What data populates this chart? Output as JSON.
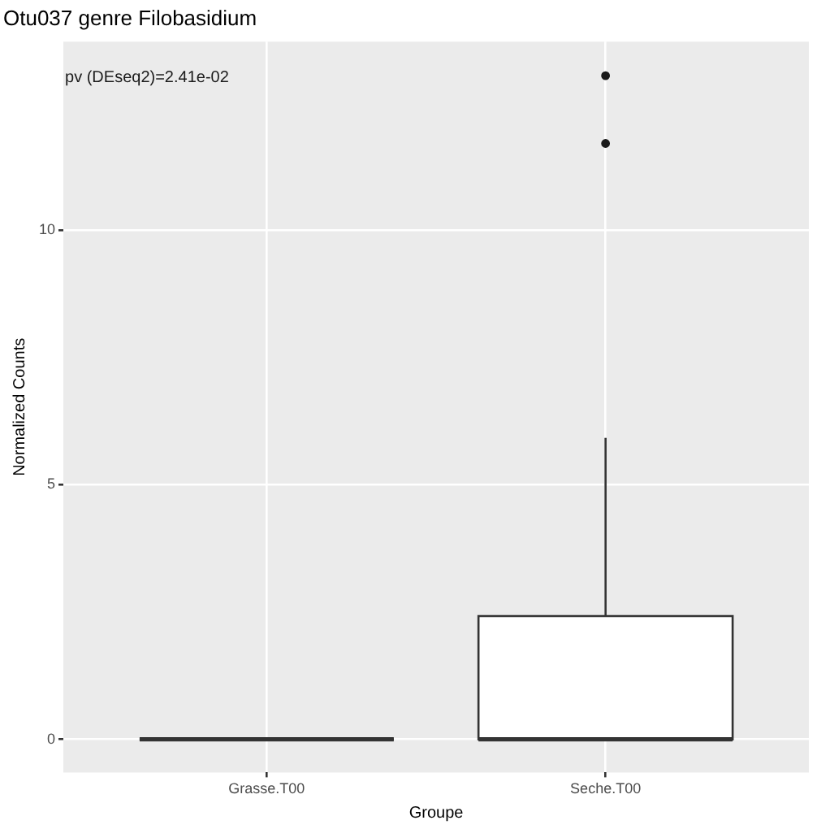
{
  "chart_data": {
    "type": "box",
    "title": "Otu037 genre Filobasidium",
    "xlabel": "Groupe",
    "ylabel": "Normalized Counts",
    "categories": [
      "Grasse.T00",
      "Seche.T00"
    ],
    "boxes": [
      {
        "low": 0,
        "q1": 0,
        "median": 0,
        "q3": 0,
        "high": 0
      },
      {
        "low": 0,
        "q1": 0,
        "median": 0,
        "q3": 2.42,
        "high": 5.92,
        "outliers": [
          11.7,
          13.03
        ]
      }
    ],
    "ylim": [
      -0.65,
      13.7
    ],
    "yticks": [
      0,
      5,
      10
    ],
    "grid": true,
    "annotations": [
      "pv (DEseq2)=2.41e-02"
    ]
  }
}
